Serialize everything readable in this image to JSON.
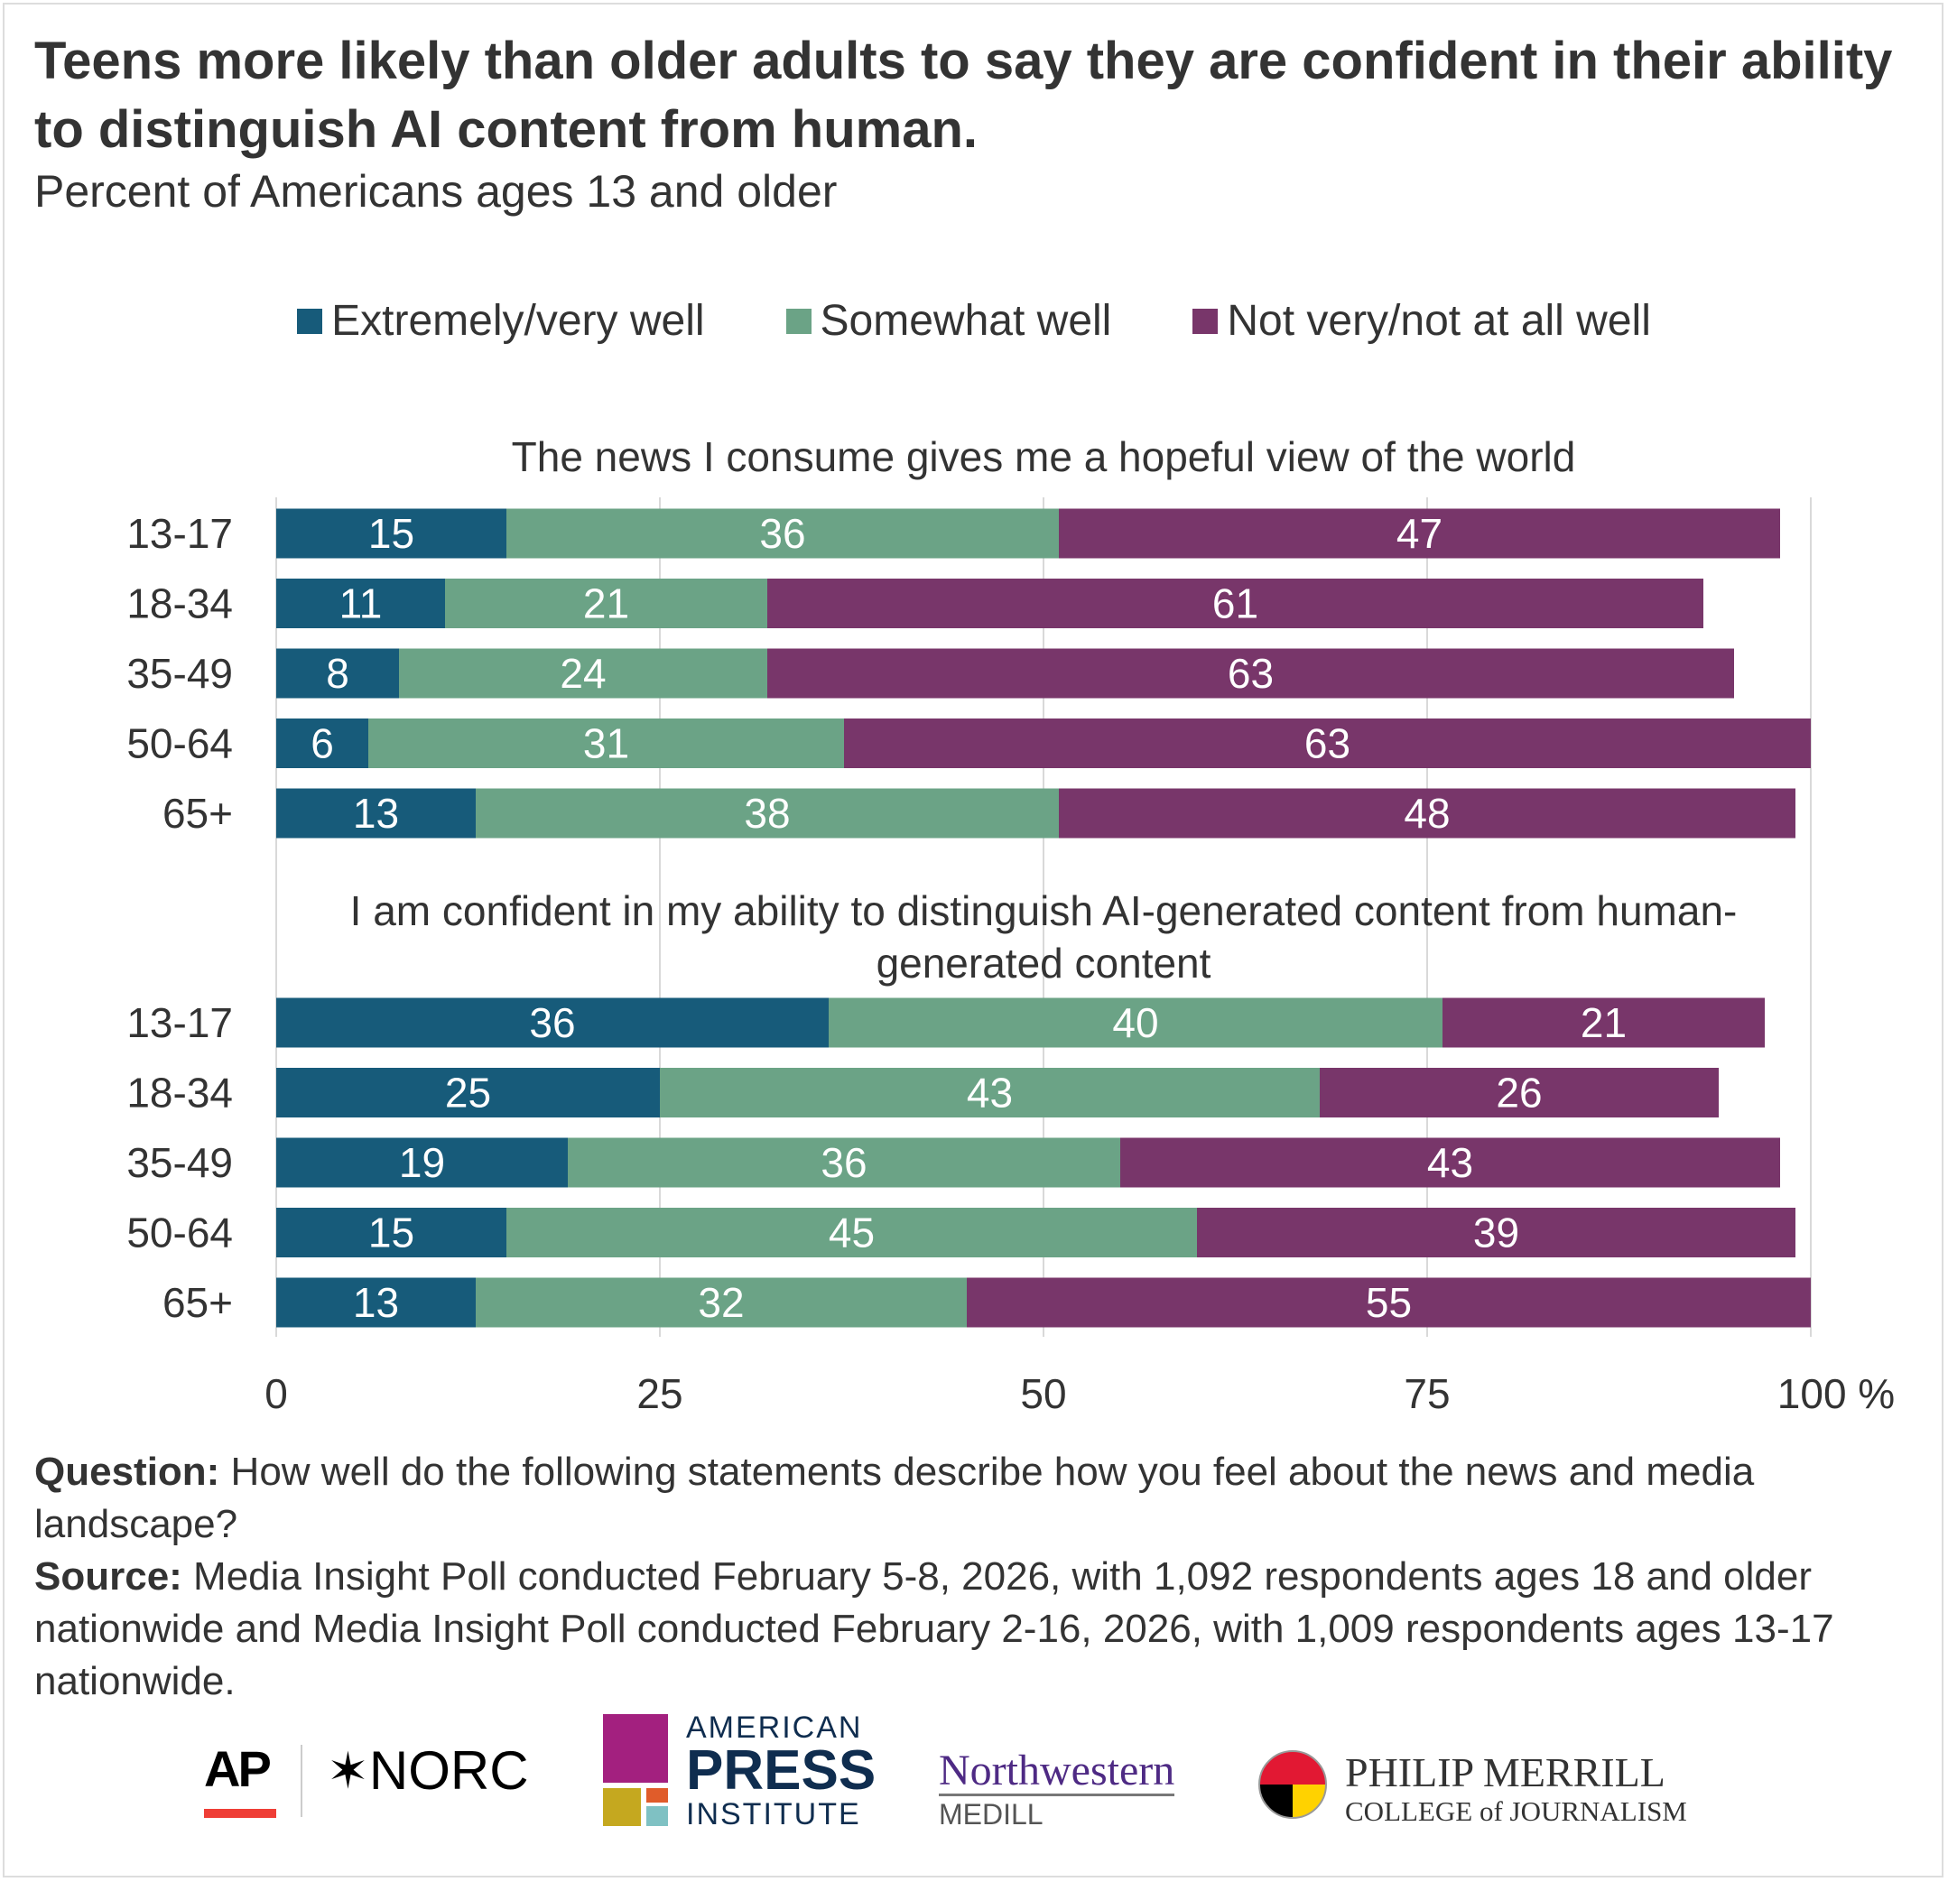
{
  "chart_data": {
    "type": "bar",
    "orientation": "horizontal",
    "stacked": true,
    "title": "Teens more likely than older adults to say they are confident in their ability to distinguish AI content from human.",
    "subtitle": "Percent of Americans ages 13 and older",
    "xlim": [
      0,
      100
    ],
    "xticks": [
      "0",
      "25",
      "50",
      "75",
      "100 %"
    ],
    "xtick_values": [
      0,
      25,
      50,
      75,
      100
    ],
    "grid": true,
    "legend_position": "top",
    "series_names": [
      "Extremely/very well",
      "Somewhat well",
      "Not very/not at all well"
    ],
    "colors": [
      "#175b7a",
      "#6ba386",
      "#78366a"
    ],
    "panels": [
      {
        "title": "The news I consume gives me a hopeful view of the world",
        "categories": [
          "13-17",
          "18-34",
          "35-49",
          "50-64",
          "65+"
        ],
        "series": [
          {
            "name": "Extremely/very well",
            "values": [
              15,
              11,
              8,
              6,
              13
            ]
          },
          {
            "name": "Somewhat well",
            "values": [
              36,
              21,
              24,
              31,
              38
            ]
          },
          {
            "name": "Not very/not at all well",
            "values": [
              47,
              61,
              63,
              63,
              48
            ]
          }
        ]
      },
      {
        "title": "I am confident in my ability to distinguish AI-generated content from human-generated content",
        "title_lines": [
          "I am confident in my ability to distinguish AI-generated content from human-",
          "generated content"
        ],
        "categories": [
          "13-17",
          "18-34",
          "35-49",
          "50-64",
          "65+"
        ],
        "series": [
          {
            "name": "Extremely/very well",
            "values": [
              36,
              25,
              19,
              15,
              13
            ]
          },
          {
            "name": "Somewhat well",
            "values": [
              40,
              43,
              36,
              45,
              32
            ]
          },
          {
            "name": "Not very/not at all well",
            "values": [
              21,
              26,
              43,
              39,
              55
            ]
          }
        ]
      }
    ]
  },
  "notes": {
    "question_label": "Question:",
    "question": " How well do the following statements describe how you feel about the news and media landscape?",
    "source_label": "Source:",
    "source": " Media Insight Poll conducted February 5-8, 2026, with 1,092 respondents ages 18 and older nationwide and Media Insight Poll conducted February 2-16, 2026, with 1,009 respondents ages 13-17 nationwide."
  },
  "logos": {
    "ap": "AP",
    "norc": "NORC",
    "api": [
      "AMERICAN",
      "PRESS",
      "INSTITUTE"
    ],
    "northwestern": "Northwestern",
    "medill": "MEDILL",
    "merrill": [
      "PHILIP MERRILL",
      "COLLEGE of JOURNALISM"
    ]
  }
}
